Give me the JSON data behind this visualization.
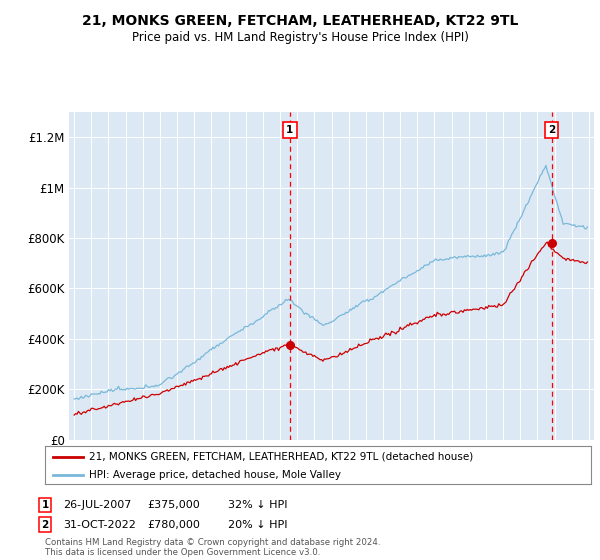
{
  "title": "21, MONKS GREEN, FETCHAM, LEATHERHEAD, KT22 9TL",
  "subtitle": "Price paid vs. HM Land Registry's House Price Index (HPI)",
  "plot_bg_color": "#dce9f5",
  "hpi_color": "#7ab8d9",
  "price_color": "#cc0000",
  "ylim": [
    0,
    1300000
  ],
  "yticks": [
    0,
    200000,
    400000,
    600000,
    800000,
    1000000,
    1200000
  ],
  "ytick_labels": [
    "£0",
    "£200K",
    "£400K",
    "£600K",
    "£800K",
    "£1M",
    "£1.2M"
  ],
  "legend_label_price": "21, MONKS GREEN, FETCHAM, LEATHERHEAD, KT22 9TL (detached house)",
  "legend_label_hpi": "HPI: Average price, detached house, Mole Valley",
  "sale1_year": 2007.57,
  "sale1_price": 375000,
  "sale2_year": 2022.83,
  "sale2_price": 780000,
  "footer": "Contains HM Land Registry data © Crown copyright and database right 2024.\nThis data is licensed under the Open Government Licence v3.0.",
  "xstart": 1994.7,
  "xend": 2025.3
}
